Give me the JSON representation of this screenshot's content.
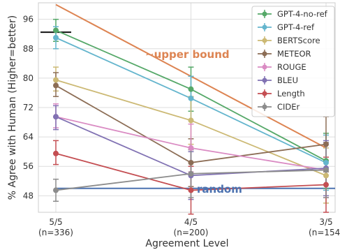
{
  "chart_data": {
    "type": "line",
    "xlabel": "Agreement Level",
    "ylabel": "% Agree with Human (Higher=better)",
    "categories": [
      "5/5\n(n=336)",
      "4/5\n(n=200)",
      "3/5\n(n=154)"
    ],
    "ylim": [
      43.5,
      100.5
    ],
    "yticks": [
      48,
      56,
      64,
      72,
      80,
      88,
      96
    ],
    "grid": true,
    "legend_position": "top-right",
    "series": [
      {
        "name": "GPT-4-no-ref",
        "color": "#55a868",
        "values": [
          93.0,
          77.0,
          57.5
        ],
        "err": [
          [
            90.0,
            96.0
          ],
          [
            71.0,
            83.0
          ],
          [
            50.0,
            65.0
          ]
        ]
      },
      {
        "name": "GPT-4-ref",
        "color": "#64b5cd",
        "values": [
          91.0,
          74.5,
          57.0
        ],
        "err": [
          [
            88.0,
            94.0
          ],
          [
            68.5,
            80.5
          ],
          [
            49.5,
            64.5
          ]
        ]
      },
      {
        "name": "BERTScore",
        "color": "#ccb974",
        "values": [
          79.5,
          68.5,
          53.5
        ],
        "err": [
          [
            76.5,
            83.0
          ],
          [
            62.0,
            75.0
          ],
          [
            46.0,
            61.0
          ]
        ]
      },
      {
        "name": "METEOR",
        "color": "#8c6d55",
        "values": [
          78.0,
          57.0,
          62.0
        ],
        "err": [
          [
            75.0,
            81.5
          ],
          [
            50.5,
            63.5
          ],
          [
            54.5,
            69.5
          ]
        ]
      },
      {
        "name": "ROUGE",
        "color": "#da8bc3",
        "values": [
          69.5,
          61.0,
          55.0
        ],
        "err": [
          [
            66.5,
            73.0
          ],
          [
            54.5,
            67.5
          ],
          [
            47.5,
            62.5
          ]
        ]
      },
      {
        "name": "BLEU",
        "color": "#8172b3",
        "values": [
          69.5,
          53.5,
          55.5
        ],
        "err": [
          [
            66.0,
            72.5
          ],
          [
            47.0,
            60.0
          ],
          [
            48.0,
            63.0
          ]
        ]
      },
      {
        "name": "Length",
        "color": "#c44e52",
        "values": [
          59.5,
          49.5,
          51.0
        ],
        "err": [
          [
            56.5,
            63.0
          ],
          [
            43.0,
            56.0
          ],
          [
            43.5,
            58.5
          ]
        ]
      },
      {
        "name": "CIDEr",
        "color": "#8c8c8c",
        "values": [
          49.5,
          54.0,
          55.0
        ],
        "err": [
          [
            46.5,
            52.5
          ],
          [
            47.5,
            60.5
          ],
          [
            47.5,
            62.5
          ]
        ]
      }
    ],
    "reference_lines": [
      {
        "label": "~upper bound",
        "color": "#dd8452",
        "from": [
          0,
          100.0
        ],
        "to": [
          2,
          61.0
        ]
      },
      {
        "label": "random",
        "color": "#4c72b0",
        "y": 50
      }
    ],
    "upper_bound_marker": {
      "color": "#111111",
      "y": 92.5
    }
  }
}
